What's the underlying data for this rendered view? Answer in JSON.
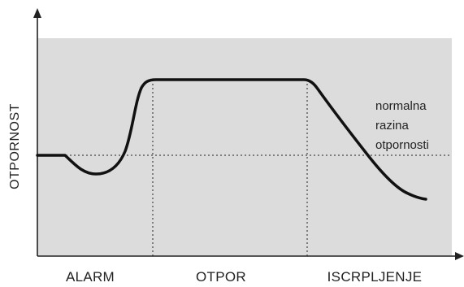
{
  "diagram": {
    "y_axis_label": "OTPORNOST",
    "phases": [
      {
        "label": "ALARM"
      },
      {
        "label": "OTPOR"
      },
      {
        "label": "ISCRPLJENJE"
      }
    ],
    "baseline_note": [
      "normalna",
      "razina",
      "otpornosti"
    ],
    "colors": {
      "panel": "#dcdcdc",
      "curve": "#111111",
      "axis": "#222222",
      "dotted": "#444444",
      "text": "#222222"
    }
  }
}
